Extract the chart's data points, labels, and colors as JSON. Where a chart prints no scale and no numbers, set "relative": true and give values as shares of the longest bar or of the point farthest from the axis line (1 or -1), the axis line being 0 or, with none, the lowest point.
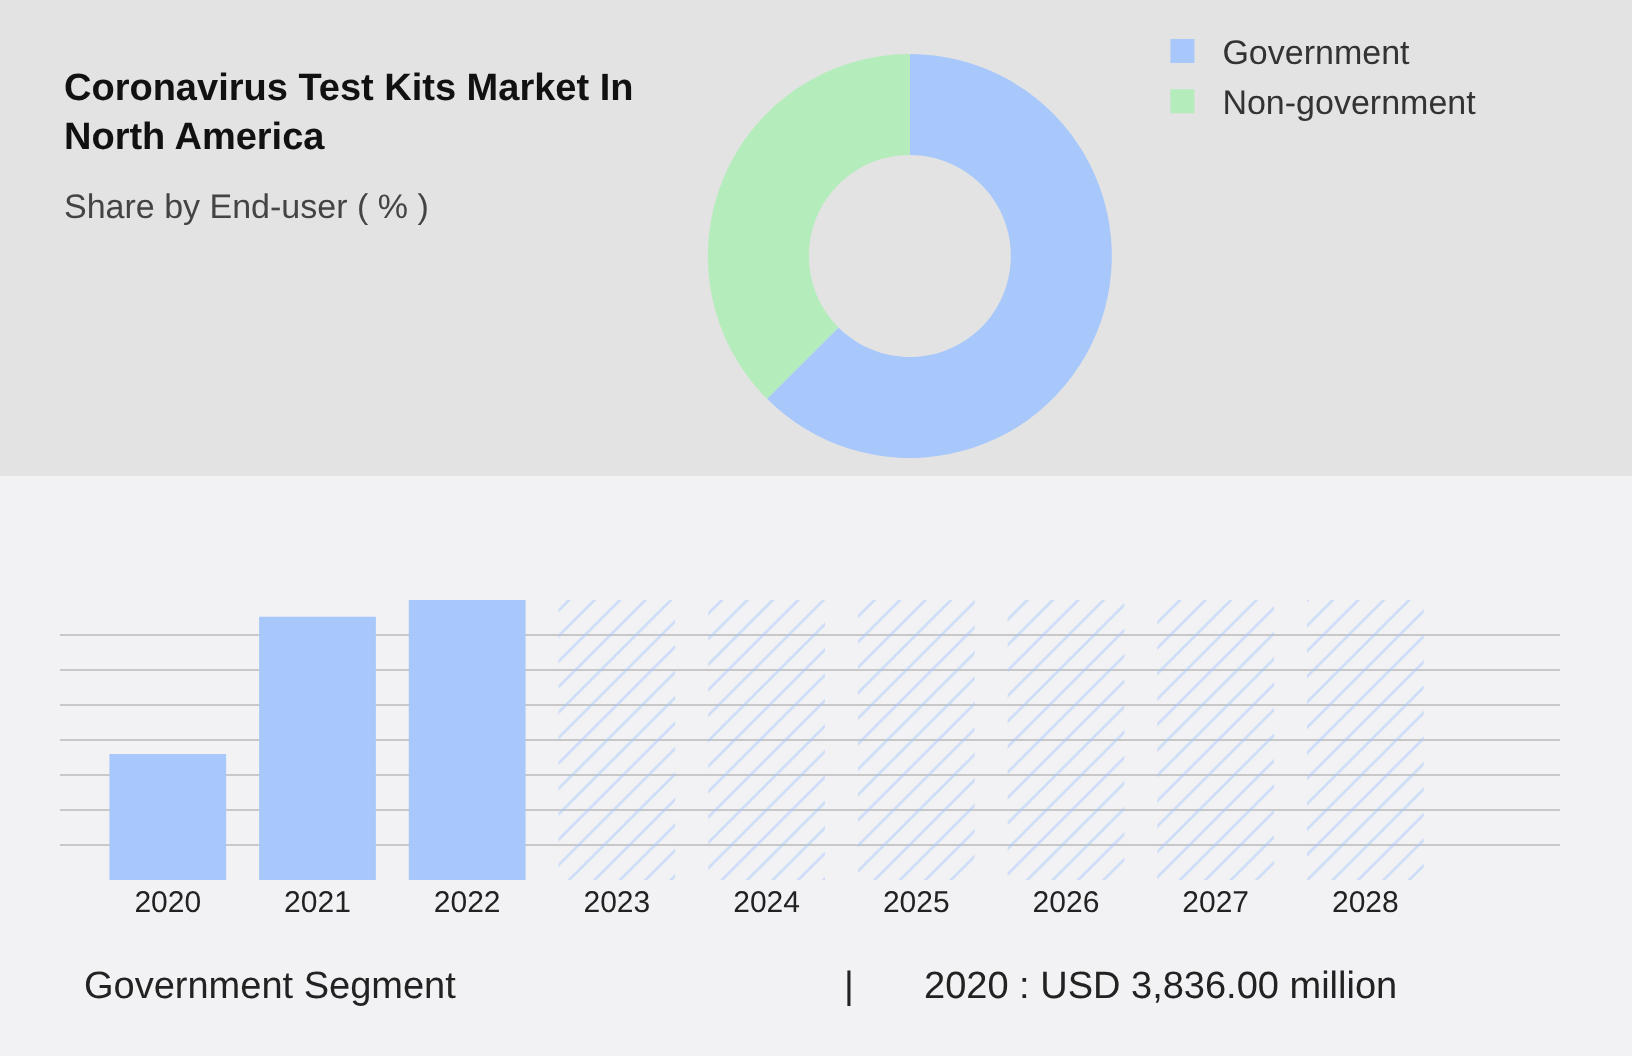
{
  "chart_data": [
    {
      "type": "donut",
      "title": "Coronavirus Test Kits Market In North America",
      "subtitle": "Share by End-user ( % )",
      "categories": [
        "Government",
        "Non-government"
      ],
      "values": [
        62.5,
        37.5
      ],
      "colors": [
        "#a8c8fb",
        "#b5ecbb"
      ],
      "legend": "top right"
    },
    {
      "type": "bar",
      "relative": true,
      "categories": [
        "2020",
        "2021",
        "2022",
        "2023",
        "2024",
        "2025",
        "2026",
        "2027",
        "2028"
      ],
      "grid": "y",
      "series": [
        {
          "color": "#a8c8fb",
          "values": [
            0.45,
            0.94,
            1,
            null,
            null,
            null,
            null,
            null,
            null
          ]
        },
        {
          "color": "#a8c8fb",
          "values": [
            null,
            null,
            null,
            1,
            1,
            1,
            1,
            1,
            1
          ]
        }
      ],
      "annotations": [
        "Government Segment",
        "|",
        "2020 : USD 3,836.00 million"
      ]
    }
  ]
}
